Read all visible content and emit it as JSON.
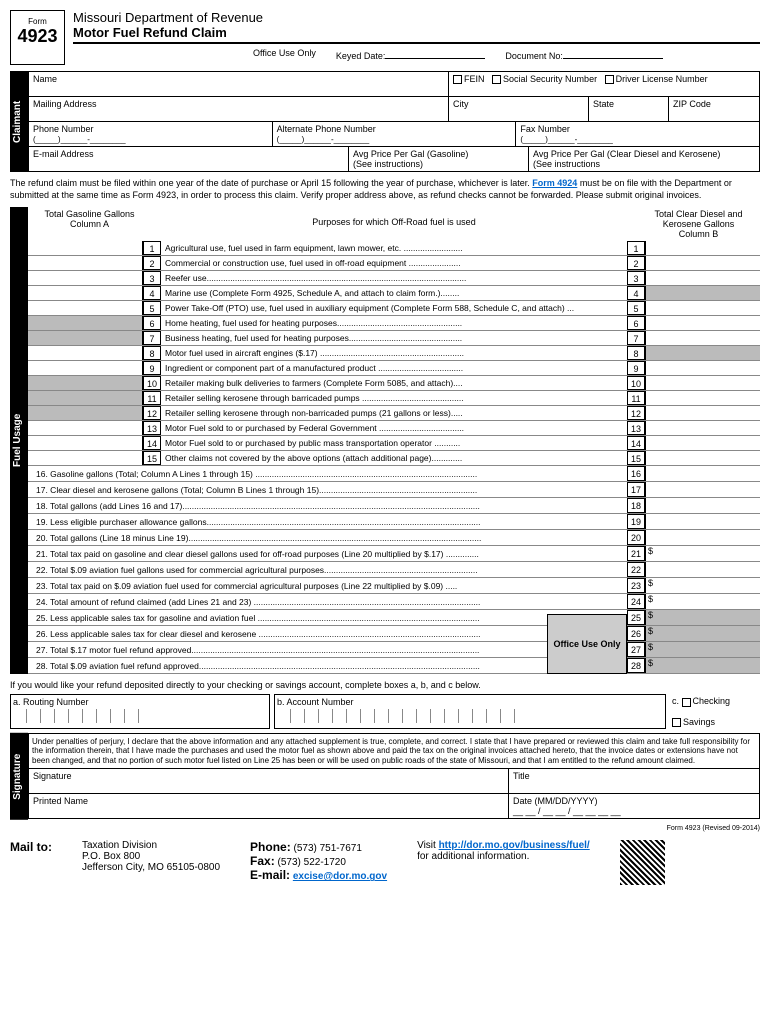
{
  "header": {
    "form_label": "Form",
    "form_num": "4923",
    "dept": "Missouri Department of Revenue",
    "title": "Motor Fuel Refund Claim"
  },
  "office": {
    "label": "Office Use Only",
    "keyed": "Keyed Date:",
    "doc": "Document No:"
  },
  "id_checks": [
    "FEIN",
    "Social Security Number",
    "Driver License Number"
  ],
  "claimant": {
    "name": "Name",
    "mailing": "Mailing Address",
    "city": "City",
    "state": "State",
    "zip": "ZIP Code",
    "phone": "Phone Number",
    "alt_phone": "Alternate Phone Number",
    "fax": "Fax Number",
    "email": "E-mail Address",
    "avg_gas": "Avg Price Per Gal (Gasoline)",
    "see1": "(See instructions)",
    "avg_diesel": "Avg Price Per Gal (Clear Diesel and Kerosene)",
    "see2": "(See instructions"
  },
  "intro": {
    "text1": "The refund claim must be filed within one year of the date of purchase or April 15 following the year of purchase, whichever is later. ",
    "link1": "Form 4924",
    "text2": " must be on file with the Department or submitted at the same time as Form 4923, in order to process this claim. Verify proper address above, as refund checks cannot be forwarded.  Please submit original invoices."
  },
  "usage_header": {
    "colA_title": "Total Gasoline Gallons",
    "colA": "Column A",
    "mid": "Purposes for which Off-Road fuel is used",
    "colB_title": "Total Clear Diesel and Kerosene Gallons",
    "colB": "Column B"
  },
  "purposes": [
    {
      "n": "1",
      "t": "Agricultural use, fuel used in farm equipment, lawn mower, etc. .........................",
      "aS": false,
      "bS": false
    },
    {
      "n": "2",
      "t": "Commercial or construction use, fuel used in off-road equipment ......................",
      "aS": false,
      "bS": false
    },
    {
      "n": "3",
      "t": "Reefer use..............................................................................................................",
      "aS": false,
      "bS": false
    },
    {
      "n": "4",
      "t": "Marine use (Complete Form 4925, Schedule A, and attach to claim form.)........",
      "aS": false,
      "bS": true
    },
    {
      "n": "5",
      "t": "Power Take-Off (PTO) use, fuel used in auxiliary equipment (Complete Form 588, Schedule C, and attach) ...",
      "aS": false,
      "bS": false
    },
    {
      "n": "6",
      "t": "Home heating, fuel used for heating purposes.....................................................",
      "aS": true,
      "bS": false
    },
    {
      "n": "7",
      "t": "Business heating, fuel used for heating purposes................................................",
      "aS": true,
      "bS": false
    },
    {
      "n": "8",
      "t": "Motor fuel used in aircraft engines ($.17) .............................................................",
      "aS": false,
      "bS": true
    },
    {
      "n": "9",
      "t": "Ingredient or component part of a manufactured product ....................................",
      "aS": false,
      "bS": false
    },
    {
      "n": "10",
      "t": "Retailer making bulk deliveries to farmers (Complete Form 5085, and attach)....",
      "aS": true,
      "bS": false
    },
    {
      "n": "11",
      "t": "Retailer selling kerosene through barricaded pumps ...........................................",
      "aS": true,
      "bS": false
    },
    {
      "n": "12",
      "t": "Retailer selling kerosene through non-barricaded pumps (21 gallons or less).....",
      "aS": true,
      "bS": false
    },
    {
      "n": "13",
      "t": "Motor Fuel sold to or purchased by Federal Government ....................................",
      "aS": false,
      "bS": false
    },
    {
      "n": "14",
      "t": "Motor Fuel sold to or purchased by public mass transportation operator ...........",
      "aS": false,
      "bS": false
    },
    {
      "n": "15",
      "t": "Other claims not covered by the above options (attach additional page).............",
      "aS": false,
      "bS": false
    }
  ],
  "totals": [
    {
      "n": "16",
      "t": "16.  Gasoline gallons (Total; Column A Lines 1 through 15) ..............................................................................................",
      "d": false
    },
    {
      "n": "17",
      "t": "17.  Clear diesel and kerosene gallons (Total; Column B Lines 1 through 15)...................................................................",
      "d": false
    },
    {
      "n": "18",
      "t": "18.  Total gallons (add Lines 16 and 17)..............................................................................................................................",
      "d": false
    },
    {
      "n": "19",
      "t": "19.  Less eligible purchaser allowance gallons....................................................................................................................",
      "d": false
    },
    {
      "n": "20",
      "t": "20.  Total gallons (Line 18 minus Line 19)............................................................................................................................",
      "d": false
    },
    {
      "n": "21",
      "t": "21.  Total tax paid on gasoline and clear diesel gallons used for off-road purposes (Line 20 multiplied by $.17) ..............",
      "d": true
    },
    {
      "n": "22",
      "t": "22.  Total $.09 aviation fuel gallons used for commercial agricultural purposes.................................................................",
      "d": false
    },
    {
      "n": "23",
      "t": "23.  Total tax paid on $.09 aviation fuel used for commercial agricultural purposes (Line 22 multiplied by $.09) .....",
      "d": true
    },
    {
      "n": "24",
      "t": "24.  Total amount of refund claimed (add Lines 21 and 23) ................................................................................................",
      "d": true
    },
    {
      "n": "25",
      "t": "25.  Less applicable sales tax for gasoline and aviation fuel ..............................................................................................",
      "d": true,
      "ou": true
    },
    {
      "n": "26",
      "t": "26.  Less applicable sales tax for clear diesel and kerosene ..............................................................................................",
      "d": true,
      "ou": true
    },
    {
      "n": "27",
      "t": "27.  Total $.17 motor fuel refund approved..........................................................................................................................",
      "d": true,
      "ou": true
    },
    {
      "n": "28",
      "t": "28.  Total $.09 aviation fuel refund approved.......................................................................................................................",
      "d": true,
      "ou": true
    }
  ],
  "deposit": {
    "intro": "If you would like your refund deposited directly to your checking or savings account, complete boxes a, b, and c below.",
    "routing": "a. Routing Number",
    "account": "b. Account Number",
    "c": "c.",
    "checking": "Checking",
    "savings": "Savings"
  },
  "sig": {
    "penalty": "Under penalties of perjury, I declare that the above information and any attached supplement is true, complete, and correct. I state that I have prepared or reviewed this claim and take full responsibility for the information therein, that I have made the purchases and used the motor fuel as shown above and paid the tax on the original invoices attached hereto, that the invoice dates or extensions have not been changed, and that no portion of such motor fuel listed on Line 25 has been or will be used on public roads of the state of Missouri, and that I am entitled to the refund amount claimed.",
    "signature": "Signature",
    "title": "Title",
    "printed": "Printed Name",
    "date": "Date (MM/DD/YYYY)",
    "date_fmt": "__ __ / __ __ / __ __ __ __"
  },
  "mailto": {
    "label": "Mail to:",
    "addr1": "Taxation Division",
    "addr2": "P.O. Box 800",
    "addr3": "Jefferson City, MO 65105-0800",
    "phone_l": "Phone:",
    "phone": "(573) 751-7671",
    "fax_l": "Fax:",
    "fax": "(573) 522-1720",
    "email_l": "E-mail:",
    "email": "excise@dor.mo.gov",
    "visit": "Visit ",
    "url": "http://dor.mo.gov/business/fuel/",
    "visit2": "for additional information."
  },
  "revised": "Form 4923 (Revised 09-2014)",
  "office_use": "Office Use Only"
}
